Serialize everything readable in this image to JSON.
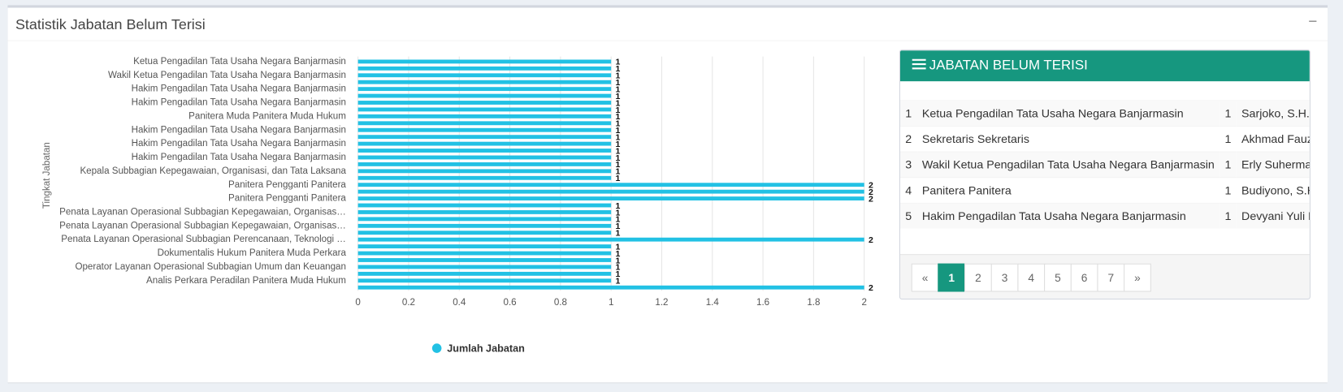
{
  "panel": {
    "title": "Statistik Jabatan Belum Terisi",
    "collapse": "−"
  },
  "chart_data": {
    "type": "barh",
    "y_label": "Tingkat Jabatan",
    "categories": [
      "Ketua Pengadilan Tata Usaha Negara Banjarmasin",
      null,
      "Wakil Ketua Pengadilan Tata Usaha Negara Banjarmasin",
      null,
      "Hakim Pengadilan Tata Usaha Negara Banjarmasin",
      null,
      "Hakim Pengadilan Tata Usaha Negara Banjarmasin",
      null,
      "Panitera Muda Panitera Muda Hukum",
      null,
      "Hakim Pengadilan Tata Usaha Negara Banjarmasin",
      null,
      "Hakim Pengadilan Tata Usaha Negara Banjarmasin",
      null,
      "Hakim Pengadilan Tata Usaha Negara Banjarmasin",
      null,
      "Kepala Subbagian Kepegawaian, Organisasi, dan Tata Laksana",
      null,
      "Panitera Pengganti Panitera",
      null,
      "Panitera Pengganti Panitera",
      null,
      "Penata Layanan Operasional Subbagian Kepegawaian, Organisas…",
      null,
      "Penata Layanan Operasional Subbagian Kepegawaian, Organisas…",
      null,
      "Penata Layanan Operasional Subbagian Perencanaan, Teknologi …",
      null,
      "Dokumentalis Hukum Panitera Muda Perkara",
      null,
      "Operator Layanan Operasional Subbagian Umum dan Keuangan",
      null,
      "Analis Perkara Peradilan Panitera Muda Hukum",
      null
    ],
    "series": [
      {
        "name": "Jumlah Jabatan",
        "color": "#22c1e4",
        "values": [
          1,
          1,
          1,
          1,
          1,
          1,
          1,
          1,
          1,
          1,
          1,
          1,
          1,
          1,
          1,
          1,
          1,
          1,
          2,
          2,
          2,
          1,
          1,
          1,
          1,
          1,
          2,
          1,
          1,
          1,
          1,
          1,
          1,
          2
        ]
      }
    ],
    "xlim": [
      0,
      2
    ],
    "xticks": [
      0,
      0.2,
      0.4,
      0.6,
      0.8,
      1,
      1.2,
      1.4,
      1.6,
      1.8,
      2
    ],
    "grid": true,
    "legend": "bottom"
  },
  "table": {
    "title": "JABATAN BELUM TERISI",
    "rows": [
      [
        1,
        "Ketua Pengadilan Tata Usaha Negara Banjarmasin",
        1,
        "Sarjoko, S.H., M"
      ],
      [
        2,
        "Sekretaris Sekretaris",
        1,
        "Akhmad Fauzan"
      ],
      [
        3,
        "Wakil Ketua Pengadilan Tata Usaha Negara Banjarmasin",
        1,
        "Erly Suhermanto"
      ],
      [
        4,
        "Panitera Panitera",
        1,
        "Budiyono, S.H.,"
      ],
      [
        5,
        "Hakim Pengadilan Tata Usaha Negara Banjarmasin",
        1,
        "Devyani Yuli Kus"
      ]
    ]
  },
  "pagination": [
    "«",
    "1",
    "2",
    "3",
    "4",
    "5",
    "6",
    "7",
    "»"
  ]
}
